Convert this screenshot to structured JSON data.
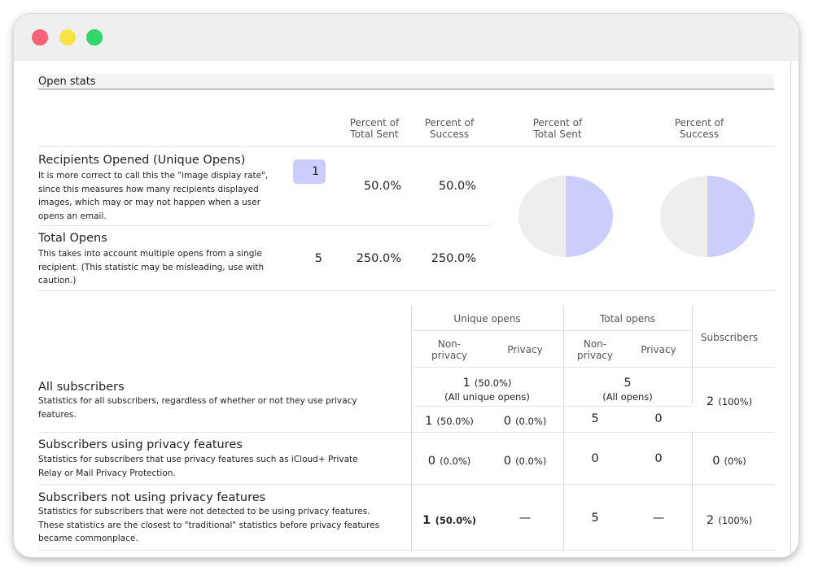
{
  "window": {
    "controls": [
      "close",
      "minimize",
      "maximize"
    ]
  },
  "open_stats": {
    "title": "Open stats",
    "col_headers": {
      "percent_total_sent": [
        "Percent of",
        "Total Sent"
      ],
      "percent_success": [
        "Percent of",
        "Success"
      ],
      "pie_total_sent": [
        "Percent of",
        "Total Sent"
      ],
      "pie_success": [
        "Percent of",
        "Success"
      ]
    },
    "rows": [
      {
        "title": "Recipients Opened (Unique Opens)",
        "description": "It is more correct to call this the \"image display rate\", since this measures how many recipients displayed images, which may or may not happen when a user opens an email.",
        "count": "1",
        "percent_total_sent": "50.0%",
        "percent_success": "50.0%"
      },
      {
        "title": "Total Opens",
        "description": "This takes into account multiple opens from a single recipient. (This statistic may be misleading, use with caution.)",
        "count": "5",
        "percent_total_sent": "250.0%",
        "percent_success": "250.0%"
      }
    ],
    "pies": {
      "total_sent_fraction": 0.5,
      "success_fraction": 0.5,
      "fill_color": "#cbcdfa",
      "rest_color": "#eeeeee"
    }
  },
  "privacy_stats": {
    "headers": {
      "unique_opens": "Unique opens",
      "total_opens": "Total opens",
      "subscribers": "Subscribers",
      "non_privacy_1": "Non-",
      "non_privacy_2": "privacy",
      "privacy": "Privacy"
    },
    "rows": [
      {
        "title": "All subscribers",
        "description": "Statistics for all subscribers, regardless of whether or not they use privacy features.",
        "unique_total": "1",
        "unique_total_pct": "(50.0%)",
        "unique_total_label": "(All unique opens)",
        "total_total": "5",
        "total_total_label": "(All opens)",
        "unique_nonprivacy": "1",
        "unique_nonprivacy_pct": "(50.0%)",
        "unique_privacy": "0",
        "unique_privacy_pct": "(0.0%)",
        "total_nonprivacy": "5",
        "total_privacy": "0",
        "subscribers": "2",
        "subscribers_pct": "(100%)"
      },
      {
        "title": "Subscribers using privacy features",
        "description": "Statistics for subscribers that use privacy features such as iCloud+ Private Relay or Mail Privacy Protection.",
        "unique_nonprivacy": "0",
        "unique_nonprivacy_pct": "(0.0%)",
        "unique_privacy": "0",
        "unique_privacy_pct": "(0.0%)",
        "total_nonprivacy": "0",
        "total_privacy": "0",
        "subscribers": "0",
        "subscribers_pct": "(0%)"
      },
      {
        "title": "Subscribers not using privacy features",
        "description": "Statistics for subscribers that were not detected to be using privacy features. These statistics are the closest to \"traditional\" statistics before privacy features became commonplace.",
        "unique_nonprivacy": "1",
        "unique_nonprivacy_pct": "(50.0%)",
        "unique_privacy": "—",
        "total_nonprivacy": "5",
        "total_privacy": "—",
        "subscribers": "2",
        "subscribers_pct": "(100%)"
      }
    ]
  }
}
